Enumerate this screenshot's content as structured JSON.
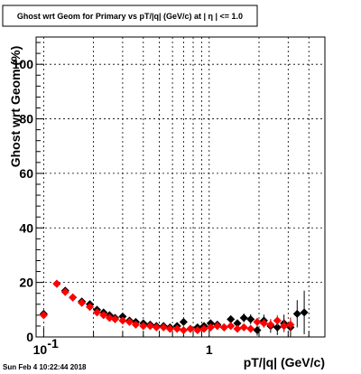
{
  "chart_data": {
    "type": "scatter",
    "title": "Ghost wrt Geom for Primary vs pT/|q| (GeV/c) at |  η | <= 1.0",
    "xlabel": "pT/|q| (GeV/c)",
    "ylabel": "Ghost wrt Geom (%)",
    "x_scale": "log",
    "xlim": [
      0.09,
      5.0
    ],
    "ylim": [
      0,
      110
    ],
    "grid": true,
    "x_tick_labels": [
      {
        "value": 0.1,
        "label": "10",
        "exp": "-1"
      },
      {
        "value": 1,
        "label": "1",
        "exp": ""
      }
    ],
    "y_ticks": [
      0,
      20,
      40,
      60,
      80,
      100
    ],
    "y_tick_labels": [
      "0",
      "20",
      "40",
      "60",
      "80",
      "100"
    ],
    "colors": {
      "series_black": "#000000",
      "series_red": "#ff0000"
    },
    "series": [
      {
        "color": "#000000",
        "points": [
          {
            "x": 0.1,
            "y": 8.5,
            "err": 1.0
          },
          {
            "x": 0.12,
            "y": 19.5,
            "err": 0.8
          },
          {
            "x": 0.135,
            "y": 17.0,
            "err": 0.8
          },
          {
            "x": 0.15,
            "y": 14.5,
            "err": 0.8
          },
          {
            "x": 0.17,
            "y": 13.0,
            "err": 0.8
          },
          {
            "x": 0.19,
            "y": 12.0,
            "err": 0.8
          },
          {
            "x": 0.21,
            "y": 10.0,
            "err": 0.8
          },
          {
            "x": 0.23,
            "y": 9.0,
            "err": 0.8
          },
          {
            "x": 0.25,
            "y": 8.0,
            "err": 0.8
          },
          {
            "x": 0.27,
            "y": 7.0,
            "err": 0.8
          },
          {
            "x": 0.3,
            "y": 7.5,
            "err": 0.8
          },
          {
            "x": 0.33,
            "y": 6.0,
            "err": 0.8
          },
          {
            "x": 0.36,
            "y": 5.5,
            "err": 0.8
          },
          {
            "x": 0.4,
            "y": 5.0,
            "err": 0.8
          },
          {
            "x": 0.44,
            "y": 4.5,
            "err": 0.8
          },
          {
            "x": 0.48,
            "y": 4.0,
            "err": 0.8
          },
          {
            "x": 0.53,
            "y": 4.0,
            "err": 0.8
          },
          {
            "x": 0.58,
            "y": 3.5,
            "err": 0.8
          },
          {
            "x": 0.64,
            "y": 4.0,
            "err": 0.8
          },
          {
            "x": 0.7,
            "y": 5.5,
            "err": 0.9
          },
          {
            "x": 0.77,
            "y": 3.0,
            "err": 0.9
          },
          {
            "x": 0.85,
            "y": 3.5,
            "err": 0.9
          },
          {
            "x": 0.93,
            "y": 4.0,
            "err": 1.0
          },
          {
            "x": 1.02,
            "y": 5.0,
            "err": 1.0
          },
          {
            "x": 1.12,
            "y": 4.5,
            "err": 1.1
          },
          {
            "x": 1.23,
            "y": 3.5,
            "err": 1.2
          },
          {
            "x": 1.35,
            "y": 6.5,
            "err": 1.3
          },
          {
            "x": 1.48,
            "y": 5.0,
            "err": 1.4
          },
          {
            "x": 1.62,
            "y": 7.0,
            "err": 1.6
          },
          {
            "x": 1.78,
            "y": 6.5,
            "err": 1.8
          },
          {
            "x": 1.95,
            "y": 2.5,
            "err": 2.0
          },
          {
            "x": 2.14,
            "y": 6.0,
            "err": 2.2
          },
          {
            "x": 2.35,
            "y": 4.0,
            "err": 2.5
          },
          {
            "x": 2.58,
            "y": 3.5,
            "err": 2.8
          },
          {
            "x": 2.83,
            "y": 5.0,
            "err": 3.2
          },
          {
            "x": 3.1,
            "y": 3.5,
            "err": 3.6
          },
          {
            "x": 3.4,
            "y": 8.5,
            "err": 5.0
          },
          {
            "x": 3.75,
            "y": 9.0,
            "err": 8.0
          }
        ]
      },
      {
        "color": "#ff0000",
        "points": [
          {
            "x": 0.1,
            "y": 8.0,
            "err": 0.8
          },
          {
            "x": 0.12,
            "y": 19.5,
            "err": 0.7
          },
          {
            "x": 0.135,
            "y": 16.5,
            "err": 0.7
          },
          {
            "x": 0.15,
            "y": 14.5,
            "err": 0.7
          },
          {
            "x": 0.17,
            "y": 12.5,
            "err": 0.7
          },
          {
            "x": 0.19,
            "y": 11.0,
            "err": 0.7
          },
          {
            "x": 0.21,
            "y": 9.0,
            "err": 0.7
          },
          {
            "x": 0.23,
            "y": 8.0,
            "err": 0.7
          },
          {
            "x": 0.25,
            "y": 7.0,
            "err": 0.7
          },
          {
            "x": 0.27,
            "y": 6.5,
            "err": 0.7
          },
          {
            "x": 0.3,
            "y": 6.0,
            "err": 0.7
          },
          {
            "x": 0.33,
            "y": 5.5,
            "err": 0.7
          },
          {
            "x": 0.36,
            "y": 4.5,
            "err": 0.7
          },
          {
            "x": 0.4,
            "y": 4.0,
            "err": 0.7
          },
          {
            "x": 0.44,
            "y": 4.0,
            "err": 0.7
          },
          {
            "x": 0.48,
            "y": 3.5,
            "err": 0.7
          },
          {
            "x": 0.53,
            "y": 3.5,
            "err": 0.7
          },
          {
            "x": 0.58,
            "y": 3.0,
            "err": 0.7
          },
          {
            "x": 0.64,
            "y": 3.0,
            "err": 0.7
          },
          {
            "x": 0.7,
            "y": 2.5,
            "err": 0.8
          },
          {
            "x": 0.77,
            "y": 3.0,
            "err": 0.8
          },
          {
            "x": 0.85,
            "y": 2.5,
            "err": 0.8
          },
          {
            "x": 0.93,
            "y": 3.0,
            "err": 0.9
          },
          {
            "x": 1.02,
            "y": 3.5,
            "err": 0.9
          },
          {
            "x": 1.12,
            "y": 4.0,
            "err": 1.0
          },
          {
            "x": 1.23,
            "y": 3.5,
            "err": 1.1
          },
          {
            "x": 1.35,
            "y": 4.0,
            "err": 1.1
          },
          {
            "x": 1.48,
            "y": 3.0,
            "err": 1.2
          },
          {
            "x": 1.62,
            "y": 3.5,
            "err": 1.3
          },
          {
            "x": 1.78,
            "y": 3.0,
            "err": 1.4
          },
          {
            "x": 1.95,
            "y": 5.5,
            "err": 1.5
          },
          {
            "x": 2.14,
            "y": 5.0,
            "err": 1.6
          },
          {
            "x": 2.35,
            "y": 4.5,
            "err": 1.8
          },
          {
            "x": 2.58,
            "y": 6.0,
            "err": 2.0
          },
          {
            "x": 2.83,
            "y": 4.0,
            "err": 2.2
          },
          {
            "x": 3.1,
            "y": 4.5,
            "err": 2.5
          }
        ]
      }
    ]
  },
  "timestamp": "Sun Feb  4 10:22:44 2018"
}
